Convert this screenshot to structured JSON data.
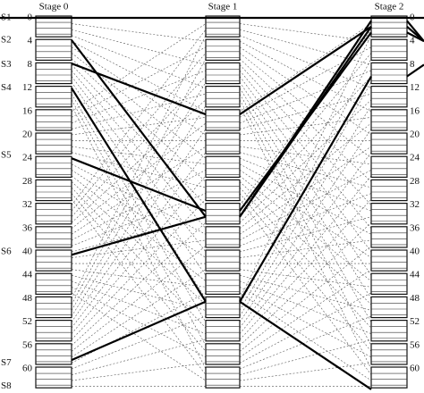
{
  "stages": [
    "Stage 0",
    "Stage 1",
    "Stage 2"
  ],
  "switch_labels": [
    "S1",
    "S2",
    "S3",
    "S4",
    "S5",
    "S6",
    "S7",
    "S8"
  ],
  "port_labels": [
    "0",
    "4",
    "8",
    "12",
    "16",
    "20",
    "24",
    "28",
    "32",
    "36",
    "40",
    "44",
    "48",
    "52",
    "56",
    "60"
  ]
}
